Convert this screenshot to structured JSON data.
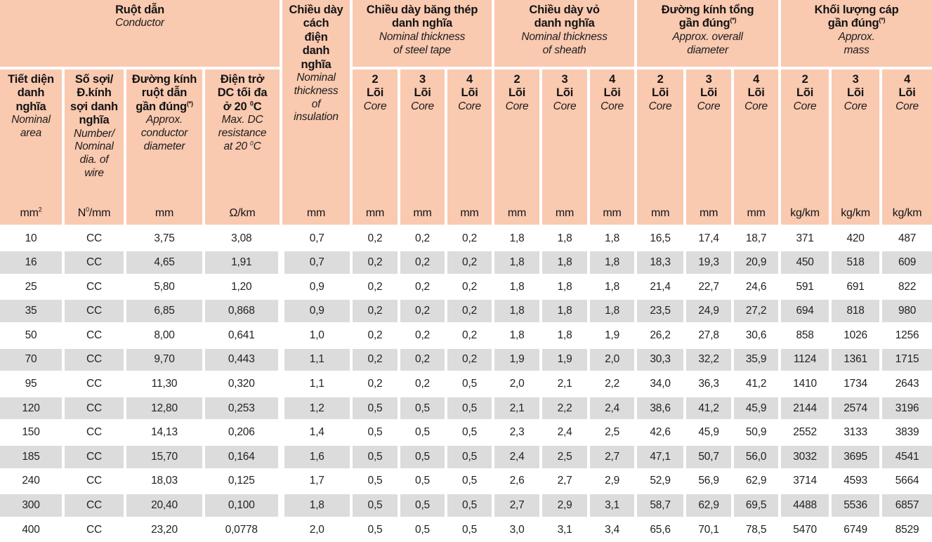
{
  "colors": {
    "header_bg": "#f9c9b0",
    "row_bg": "#ffffff",
    "row_alt_bg": "#dcdcdc",
    "separator": "#ffffff",
    "text": "#222222"
  },
  "header": {
    "groups": {
      "conductor": {
        "vi": "Ruột dẫn",
        "en": "Conductor"
      },
      "insulation": {
        "vi": "Chiều dày\ncách\nđiện\ndanh\nnghĩa",
        "en": "Nominal\nthickness\nof\ninsulation"
      },
      "steel_tape": {
        "vi": "Chiều dày băng thép\ndanh nghĩa",
        "en": "Nominal thickness\nof steel tape"
      },
      "sheath": {
        "vi": "Chiều dày vỏ\ndanh nghĩa",
        "en": "Nominal thickness\nof sheath"
      },
      "diameter": {
        "vi": "Đường kính tổng\ngần đúng^(*)^",
        "en": "Approx. overall\ndiameter"
      },
      "mass": {
        "vi": "Khối lượng cáp\ngần đúng^(*)^",
        "en": "Approx.\nmass"
      }
    },
    "subs": {
      "area": {
        "vi": "Tiết diện\ndanh\nnghĩa",
        "en": "Nominal\narea"
      },
      "wire": {
        "vi": "Số sợi/\nĐ.kính\nsợi danh\nnghĩa",
        "en": "Number/\nNominal\ndia. of\nwire"
      },
      "cond_dia": {
        "vi": "Đường kính\nruột dẫn\ngần đúng^(*)^",
        "en": "Approx.\nconductor\ndiameter"
      },
      "resistance": {
        "vi": "Điện trở\nDC tối đa\nở 20 ^0^C",
        "en": "Max. DC\nresistance\nat 20 ^0^C"
      },
      "core2": {
        "num": "2",
        "vi": "Lõi",
        "en": "Core"
      },
      "core3": {
        "num": "3",
        "vi": "Lõi",
        "en": "Core"
      },
      "core4": {
        "num": "4",
        "vi": "Lõi",
        "en": "Core"
      }
    },
    "units": [
      "mm^2^",
      "N^0^/mm",
      "mm",
      "Ω/km",
      "mm",
      "mm",
      "mm",
      "mm",
      "mm",
      "mm",
      "mm",
      "mm",
      "mm",
      "mm",
      "kg/km",
      "kg/km",
      "kg/km"
    ]
  },
  "rows": [
    [
      "10",
      "CC",
      "3,75",
      "3,08",
      "0,7",
      "0,2",
      "0,2",
      "0,2",
      "1,8",
      "1,8",
      "1,8",
      "16,5",
      "17,4",
      "18,7",
      "371",
      "420",
      "487"
    ],
    [
      "16",
      "CC",
      "4,65",
      "1,91",
      "0,7",
      "0,2",
      "0,2",
      "0,2",
      "1,8",
      "1,8",
      "1,8",
      "18,3",
      "19,3",
      "20,9",
      "450",
      "518",
      "609"
    ],
    [
      "25",
      "CC",
      "5,80",
      "1,20",
      "0,9",
      "0,2",
      "0,2",
      "0,2",
      "1,8",
      "1,8",
      "1,8",
      "21,4",
      "22,7",
      "24,6",
      "591",
      "691",
      "822"
    ],
    [
      "35",
      "CC",
      "6,85",
      "0,868",
      "0,9",
      "0,2",
      "0,2",
      "0,2",
      "1,8",
      "1,8",
      "1,8",
      "23,5",
      "24,9",
      "27,2",
      "694",
      "818",
      "980"
    ],
    [
      "50",
      "CC",
      "8,00",
      "0,641",
      "1,0",
      "0,2",
      "0,2",
      "0,2",
      "1,8",
      "1,8",
      "1,9",
      "26,2",
      "27,8",
      "30,6",
      "858",
      "1026",
      "1256"
    ],
    [
      "70",
      "CC",
      "9,70",
      "0,443",
      "1,1",
      "0,2",
      "0,2",
      "0,2",
      "1,9",
      "1,9",
      "2,0",
      "30,3",
      "32,2",
      "35,9",
      "1124",
      "1361",
      "1715"
    ],
    [
      "95",
      "CC",
      "11,30",
      "0,320",
      "1,1",
      "0,2",
      "0,2",
      "0,5",
      "2,0",
      "2,1",
      "2,2",
      "34,0",
      "36,3",
      "41,2",
      "1410",
      "1734",
      "2643"
    ],
    [
      "120",
      "CC",
      "12,80",
      "0,253",
      "1,2",
      "0,5",
      "0,5",
      "0,5",
      "2,1",
      "2,2",
      "2,4",
      "38,6",
      "41,2",
      "45,9",
      "2144",
      "2574",
      "3196"
    ],
    [
      "150",
      "CC",
      "14,13",
      "0,206",
      "1,4",
      "0,5",
      "0,5",
      "0,5",
      "2,3",
      "2,4",
      "2,5",
      "42,6",
      "45,9",
      "50,9",
      "2552",
      "3133",
      "3839"
    ],
    [
      "185",
      "CC",
      "15,70",
      "0,164",
      "1,6",
      "0,5",
      "0,5",
      "0,5",
      "2,4",
      "2,5",
      "2,7",
      "47,1",
      "50,7",
      "56,0",
      "3032",
      "3695",
      "4541"
    ],
    [
      "240",
      "CC",
      "18,03",
      "0,125",
      "1,7",
      "0,5",
      "0,5",
      "0,5",
      "2,6",
      "2,7",
      "2,9",
      "52,9",
      "56,9",
      "62,9",
      "3714",
      "4593",
      "5664"
    ],
    [
      "300",
      "CC",
      "20,40",
      "0,100",
      "1,8",
      "0,5",
      "0,5",
      "0,5",
      "2,7",
      "2,9",
      "3,1",
      "58,7",
      "62,9",
      "69,5",
      "4488",
      "5536",
      "6857"
    ],
    [
      "400",
      "CC",
      "23,20",
      "0,0778",
      "2,0",
      "0,5",
      "0,5",
      "0,5",
      "3,0",
      "3,1",
      "3,4",
      "65,6",
      "70,1",
      "78,5",
      "5470",
      "6749",
      "8529"
    ]
  ]
}
